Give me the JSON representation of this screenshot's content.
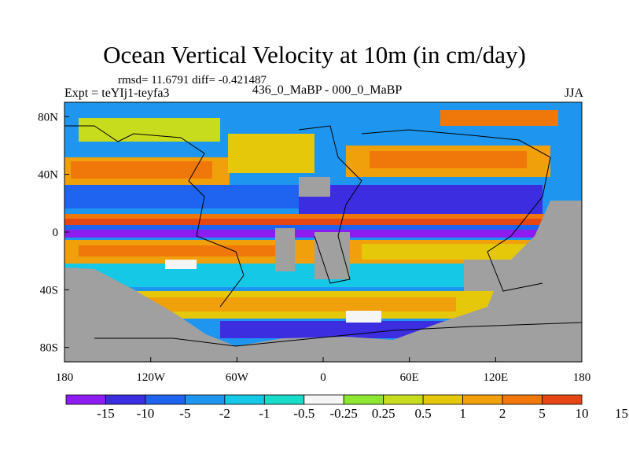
{
  "figure": {
    "title": "Ocean Vertical Velocity at 10m (in cm/day)",
    "stats": "rmsd= 11.6791 diff= -0.421487",
    "experiment": "Expt = teYIj1-teyfa3",
    "comparison": "436_0_MaBP - 000_0_MaBP",
    "season": "JJA"
  },
  "axes": {
    "x_ticks": [
      "180",
      "120W",
      "60W",
      "0",
      "60E",
      "120E",
      "180"
    ],
    "x_tick_values": [
      -180,
      -120,
      -60,
      0,
      60,
      120,
      180
    ],
    "y_ticks": [
      "80N",
      "40N",
      "0",
      "40S",
      "80S"
    ],
    "y_tick_values": [
      80,
      40,
      0,
      -40,
      -80
    ],
    "lon_range": [
      -180,
      180
    ],
    "lat_range": [
      -90,
      90
    ]
  },
  "colorbar": {
    "colors": [
      "#8c1cf0",
      "#3c2ee0",
      "#1e64f0",
      "#1e96f0",
      "#14c8e6",
      "#18dcc8",
      "#f5f5f5",
      "#8ce632",
      "#c8dc1e",
      "#e6c80a",
      "#f0a00a",
      "#f0780a",
      "#e64614"
    ],
    "labels": [
      "-15",
      "-10",
      "-5",
      "-2",
      "-1",
      "-0.5",
      "-0.25",
      "0.25",
      "0.5",
      "1",
      "2",
      "5",
      "10",
      "15"
    ]
  },
  "land_color": "#a0a0a0"
}
